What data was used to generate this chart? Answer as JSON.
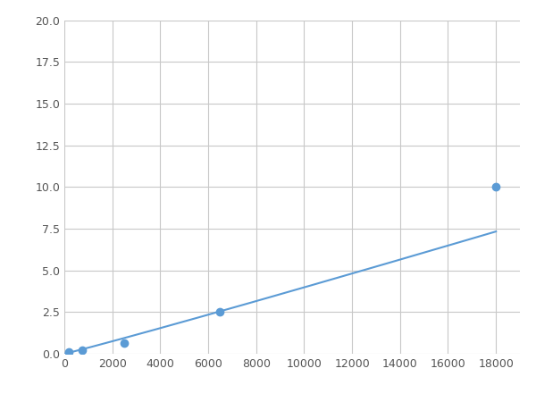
{
  "x": [
    200,
    750,
    2500,
    6500,
    18000
  ],
  "y": [
    0.1,
    0.2,
    0.65,
    2.5,
    10.0
  ],
  "line_color": "#5b9bd5",
  "marker_color": "#5b9bd5",
  "marker_size": 6,
  "xlim": [
    0,
    19000
  ],
  "ylim": [
    0,
    20.0
  ],
  "xticks": [
    0,
    2000,
    4000,
    6000,
    8000,
    10000,
    12000,
    14000,
    16000,
    18000
  ],
  "yticks": [
    0.0,
    2.5,
    5.0,
    7.5,
    10.0,
    12.5,
    15.0,
    17.5,
    20.0
  ],
  "grid_color": "#c8c8c8",
  "background_color": "#ffffff",
  "linewidth": 1.5,
  "figsize": [
    6.0,
    4.5
  ],
  "dpi": 100
}
